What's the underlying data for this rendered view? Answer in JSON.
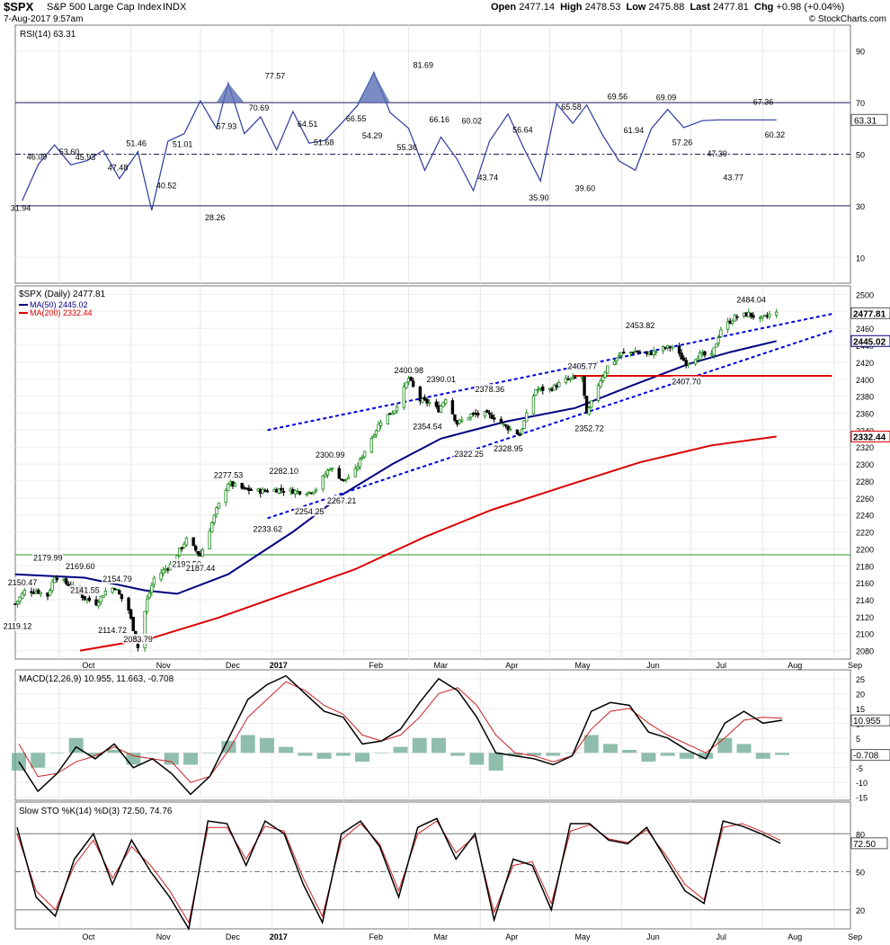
{
  "header": {
    "symbol": "$SPX",
    "name": "S&P 500 Large Cap Index",
    "exchange": "INDX",
    "datetime": "7-Aug-2017 9:57am",
    "open_label": "Open",
    "open": "2477.14",
    "high_label": "High",
    "high": "2478.53",
    "low_label": "Low",
    "low": "2475.88",
    "last_label": "Last",
    "last": "2477.81",
    "chg_label": "Chg",
    "chg": "+0.98 (+0.04%)",
    "credit": "© StockCharts.com"
  },
  "colors": {
    "price_up": "#1a8a1a",
    "price_down": "#000000",
    "ma50": "#000080",
    "ma200": "#dd0000",
    "rsi": "#2b3a9e",
    "channel": "#0000dd",
    "support": "#dd0000",
    "hline_green": "#2a9a2a",
    "hist": "#6aa890",
    "signal": "#cc2222"
  },
  "chart_data": [
    {
      "type": "line",
      "title": "RSI(14) 63.31",
      "indicator": "RSI(14)",
      "last_value": "63.31",
      "ylim": [
        0,
        100
      ],
      "y_ticks": [
        "90",
        "70",
        "50",
        "30",
        "10"
      ],
      "reference_lines": [
        70,
        50,
        30
      ],
      "x": [
        "2016-09-15",
        "2016-09-22",
        "2016-09-29",
        "2016-10-06",
        "2016-10-13",
        "2016-10-20",
        "2016-10-27",
        "2016-11-04",
        "2016-11-10",
        "2016-11-17",
        "2016-11-24",
        "2016-12-01",
        "2016-12-08",
        "2016-12-13",
        "2016-12-20",
        "2016-12-27",
        "2017-01-03",
        "2017-01-10",
        "2017-01-17",
        "2017-01-24",
        "2017-01-31",
        "2017-02-07",
        "2017-02-14",
        "2017-02-21",
        "2017-03-01",
        "2017-03-08",
        "2017-03-15",
        "2017-03-22",
        "2017-03-29",
        "2017-04-05",
        "2017-04-13",
        "2017-04-20",
        "2017-04-27",
        "2017-05-04",
        "2017-05-11",
        "2017-05-17",
        "2017-05-24",
        "2017-05-31",
        "2017-06-07",
        "2017-06-14",
        "2017-06-21",
        "2017-06-28",
        "2017-07-06",
        "2017-07-13",
        "2017-07-20",
        "2017-07-27",
        "2017-08-02",
        "2017-08-07"
      ],
      "values": [
        31.94,
        46.09,
        53.6,
        45.9,
        47.48,
        51.46,
        40.52,
        51.01,
        28.26,
        55,
        57.93,
        70.69,
        60,
        77.57,
        57.93,
        64.51,
        51.68,
        66.55,
        54.29,
        55.36,
        62,
        69,
        81.69,
        66.16,
        60.02,
        43.74,
        56.64,
        48,
        35.9,
        55,
        65.58,
        52,
        39.6,
        69.56,
        61.94,
        69.09,
        57.26,
        47.39,
        43.77,
        60,
        67.36,
        60.32,
        63,
        63.31,
        63.31,
        63.31,
        63.31,
        63.31
      ],
      "labels": [
        "31.94",
        "46.09",
        "53.60",
        "45.93",
        "47.48",
        "51.46",
        "40.52",
        "51.01",
        "28.26",
        "57.93",
        "70.69",
        "77.57",
        "64.51",
        "51.68",
        "66.55",
        "54.29",
        "55.36",
        "81.69",
        "66.16",
        "60.02",
        "43.74",
        "56.64",
        "35.90",
        "65.58",
        "39.60",
        "69.56",
        "61.94",
        "69.09",
        "57.26",
        "47.39",
        "43.77",
        "67.36",
        "60.32"
      ]
    },
    {
      "type": "candlestick",
      "title": "$SPX (Daily) 2477.81",
      "series": [
        {
          "name": "$SPX (Daily)",
          "last": "2477.81"
        },
        {
          "name": "MA(50)",
          "last": "2445.02"
        },
        {
          "name": "MA(200)",
          "last": "2332.44"
        }
      ],
      "ylim": [
        2070,
        2510
      ],
      "y_ticks": [
        "2500",
        "2480",
        "2460",
        "2440",
        "2420",
        "2400",
        "2380",
        "2360",
        "2340",
        "2320",
        "2300",
        "2280",
        "2260",
        "2240",
        "2220",
        "2200",
        "2180",
        "2160",
        "2140",
        "2120",
        "2100",
        "2080"
      ],
      "right_labels": [
        "2477.81",
        "2445.02",
        "2332.44"
      ],
      "x_ticks": [
        "Oct",
        "Nov",
        "Dec",
        "2017",
        "Feb",
        "Mar",
        "Apr",
        "May",
        "Jun",
        "Jul",
        "Aug",
        "Sep"
      ],
      "price_points": [
        [
          "2016-09-12",
          2135
        ],
        [
          "2016-09-16",
          2150
        ],
        [
          "2016-09-21",
          2150.47
        ],
        [
          "2016-09-26",
          2145
        ],
        [
          "2016-09-29",
          2168
        ],
        [
          "2016-10-03",
          2161
        ],
        [
          "2016-10-07",
          2155
        ],
        [
          "2016-10-12",
          2141.55
        ],
        [
          "2016-10-17",
          2136
        ],
        [
          "2016-10-21",
          2150
        ],
        [
          "2016-10-25",
          2154.79
        ],
        [
          "2016-10-31",
          2128
        ],
        [
          "2016-11-04",
          2083.79
        ],
        [
          "2016-11-08",
          2140
        ],
        [
          "2016-11-11",
          2165
        ],
        [
          "2016-11-18",
          2181
        ],
        [
          "2016-11-25",
          2211
        ],
        [
          "2016-12-01",
          2192
        ],
        [
          "2016-12-08",
          2246
        ],
        [
          "2016-12-13",
          2277.53
        ],
        [
          "2016-12-20",
          2270
        ],
        [
          "2016-12-27",
          2268
        ],
        [
          "2017-01-04",
          2270
        ],
        [
          "2017-01-10",
          2268
        ],
        [
          "2017-01-17",
          2267
        ],
        [
          "2017-01-20",
          2271
        ],
        [
          "2017-01-26",
          2296
        ],
        [
          "2017-02-01",
          2280
        ],
        [
          "2017-02-06",
          2292
        ],
        [
          "2017-02-10",
          2316
        ],
        [
          "2017-02-17",
          2351
        ],
        [
          "2017-02-23",
          2364
        ],
        [
          "2017-03-01",
          2400.98
        ],
        [
          "2017-03-06",
          2375
        ],
        [
          "2017-03-10",
          2372
        ],
        [
          "2017-03-14",
          2364
        ],
        [
          "2017-03-17",
          2378
        ],
        [
          "2017-03-22",
          2348
        ],
        [
          "2017-03-28",
          2358
        ],
        [
          "2017-04-03",
          2359
        ],
        [
          "2017-04-07",
          2355
        ],
        [
          "2017-04-12",
          2344
        ],
        [
          "2017-04-18",
          2335
        ],
        [
          "2017-04-25",
          2388
        ],
        [
          "2017-05-01",
          2388
        ],
        [
          "2017-05-08",
          2399
        ],
        [
          "2017-05-15",
          2402
        ],
        [
          "2017-05-17",
          2357
        ],
        [
          "2017-05-22",
          2394
        ],
        [
          "2017-05-26",
          2415
        ],
        [
          "2017-06-01",
          2430
        ],
        [
          "2017-06-07",
          2433
        ],
        [
          "2017-06-12",
          2429
        ],
        [
          "2017-06-16",
          2433
        ],
        [
          "2017-06-20",
          2437
        ],
        [
          "2017-06-23",
          2438
        ],
        [
          "2017-06-29",
          2419
        ],
        [
          "2017-07-05",
          2429
        ],
        [
          "2017-07-10",
          2427
        ],
        [
          "2017-07-14",
          2459
        ],
        [
          "2017-07-20",
          2473
        ],
        [
          "2017-07-26",
          2477
        ],
        [
          "2017-07-31",
          2470
        ],
        [
          "2017-08-04",
          2476
        ],
        [
          "2017-08-07",
          2477.81
        ]
      ],
      "annotations": [
        [
          "2016-09-13",
          2119.12,
          "2119.12"
        ],
        [
          "2016-09-15",
          2150.47,
          "2150.47"
        ],
        [
          "2016-09-26",
          2179.99,
          "2179.99"
        ],
        [
          "2016-10-12",
          2141.55,
          "2141.55"
        ],
        [
          "2016-10-10",
          2169.6,
          "2169.60"
        ],
        [
          "2016-10-24",
          2114.72,
          "2114.72"
        ],
        [
          "2016-10-26",
          2154.79,
          "2154.79"
        ],
        [
          "2016-11-04",
          2083.79,
          "2083.79"
        ],
        [
          "2016-11-25",
          2192.5,
          "2192.50"
        ],
        [
          "2016-12-01",
          2187.44,
          "2187.44"
        ],
        [
          "2016-12-13",
          2277.53,
          "2277.53"
        ],
        [
          "2016-12-30",
          2233.62,
          "2233.62"
        ],
        [
          "2017-01-06",
          2282.1,
          "2282.10"
        ],
        [
          "2017-01-17",
          2254.25,
          "2254.25"
        ],
        [
          "2017-01-26",
          2300.99,
          "2300.99"
        ],
        [
          "2017-01-31",
          2267.21,
          "2267.21"
        ],
        [
          "2017-03-01",
          2400.98,
          "2400.98"
        ],
        [
          "2017-03-09",
          2354.54,
          "2354.54"
        ],
        [
          "2017-03-15",
          2390.01,
          "2390.01"
        ],
        [
          "2017-03-27",
          2322.25,
          "2322.25"
        ],
        [
          "2017-04-05",
          2378.36,
          "2378.36"
        ],
        [
          "2017-04-13",
          2328.95,
          "2328.95"
        ],
        [
          "2017-05-15",
          2405.77,
          "2405.77"
        ],
        [
          "2017-05-18",
          2352.72,
          "2352.72"
        ],
        [
          "2017-06-09",
          2453.82,
          "2453.82"
        ],
        [
          "2017-06-29",
          2407.7,
          "2407.70"
        ],
        [
          "2017-07-27",
          2484.04,
          "2484.04"
        ]
      ],
      "ma50": [
        [
          "2016-09-12",
          2170
        ],
        [
          "2016-10-12",
          2166
        ],
        [
          "2016-11-07",
          2151
        ],
        [
          "2016-11-21",
          2147
        ],
        [
          "2016-12-13",
          2170
        ],
        [
          "2017-01-10",
          2220
        ],
        [
          "2017-02-01",
          2265
        ],
        [
          "2017-02-22",
          2300
        ],
        [
          "2017-03-15",
          2330
        ],
        [
          "2017-04-12",
          2350
        ],
        [
          "2017-05-12",
          2366
        ],
        [
          "2017-06-05",
          2392
        ],
        [
          "2017-06-30",
          2418
        ],
        [
          "2017-07-18",
          2432
        ],
        [
          "2017-08-07",
          2445.02
        ]
      ],
      "ma200": [
        [
          "2016-10-10",
          2080
        ],
        [
          "2016-11-09",
          2094
        ],
        [
          "2016-12-09",
          2119
        ],
        [
          "2017-01-06",
          2146
        ],
        [
          "2017-02-06",
          2176
        ],
        [
          "2017-03-08",
          2214
        ],
        [
          "2017-04-06",
          2246
        ],
        [
          "2017-05-10",
          2276
        ],
        [
          "2017-06-09",
          2302
        ],
        [
          "2017-07-10",
          2322
        ],
        [
          "2017-08-07",
          2332.44
        ]
      ],
      "channel_upper": [
        [
          "2016-12-30",
          2340
        ],
        [
          "2017-08-31",
          2477
        ]
      ],
      "channel_lower": [
        [
          "2016-12-30",
          2236
        ],
        [
          "2017-08-31",
          2457
        ]
      ],
      "support_line": [
        [
          "2017-05-11",
          2404
        ],
        [
          "2017-08-31",
          2404
        ]
      ],
      "horizontal_line": [
        [
          "2016-09-12",
          2193
        ],
        [
          "2017-09-05",
          2193
        ]
      ]
    },
    {
      "type": "bar",
      "title": "MACD(12,26,9) 10.955, 11.663, -0.708",
      "indicator": "MACD(12,26,9)",
      "series": [
        {
          "name": "MACD",
          "last": "10.955"
        },
        {
          "name": "Signal",
          "last": "11.663"
        },
        {
          "name": "Histogram",
          "last": "-0.708"
        }
      ],
      "ylim": [
        -16,
        28
      ],
      "y_ticks": [
        "25",
        "20",
        "15",
        "10",
        "5",
        "0",
        "-5",
        "-10",
        "-15"
      ],
      "right_labels": [
        "10.955",
        "-0.708"
      ],
      "macd": [
        -3,
        -13,
        -7,
        2,
        -2,
        3,
        -5,
        -2,
        -7,
        -14,
        -8,
        5,
        18,
        23,
        26,
        20,
        14,
        12,
        3,
        4,
        8,
        17,
        25,
        21,
        12,
        0,
        -1,
        -2,
        -4,
        -1,
        14,
        17,
        16,
        7,
        5,
        1,
        -2,
        10,
        14,
        10,
        11
      ],
      "signal": [
        3,
        -8,
        -7,
        -3,
        -1,
        2,
        -1,
        -2,
        -3,
        -10,
        -8,
        1,
        12,
        18,
        24,
        21,
        16,
        13,
        6,
        4,
        6,
        12,
        20,
        22,
        16,
        6,
        0,
        -1,
        -3,
        -1,
        8,
        14,
        15,
        10,
        6,
        3,
        0,
        5,
        11,
        12,
        11.7
      ]
    },
    {
      "type": "line",
      "title": "Slow STO %K(14) %D(3) 72.50, 74.76",
      "indicator": "Slow STO %K(14) %D(3)",
      "series": [
        {
          "name": "%K(14)",
          "last": "72.50"
        },
        {
          "name": "%D(3)",
          "last": "74.76"
        }
      ],
      "ylim": [
        5,
        105
      ],
      "y_ticks": [
        "80",
        "50",
        "20"
      ],
      "reference_lines": [
        80,
        50,
        20
      ],
      "right_labels": [
        "72.50"
      ],
      "k": [
        85,
        30,
        15,
        60,
        80,
        40,
        75,
        50,
        30,
        5,
        90,
        88,
        55,
        90,
        80,
        40,
        10,
        80,
        90,
        70,
        30,
        85,
        92,
        60,
        80,
        12,
        60,
        55,
        20,
        88,
        88,
        75,
        72,
        85,
        60,
        35,
        25,
        90,
        86,
        80,
        72.5
      ],
      "d": [
        80,
        35,
        20,
        55,
        75,
        45,
        70,
        55,
        35,
        10,
        85,
        85,
        60,
        86,
        82,
        45,
        15,
        75,
        88,
        72,
        35,
        80,
        90,
        65,
        78,
        18,
        55,
        58,
        25,
        82,
        87,
        76,
        73,
        83,
        63,
        40,
        28,
        85,
        88,
        82,
        74.76
      ]
    }
  ]
}
